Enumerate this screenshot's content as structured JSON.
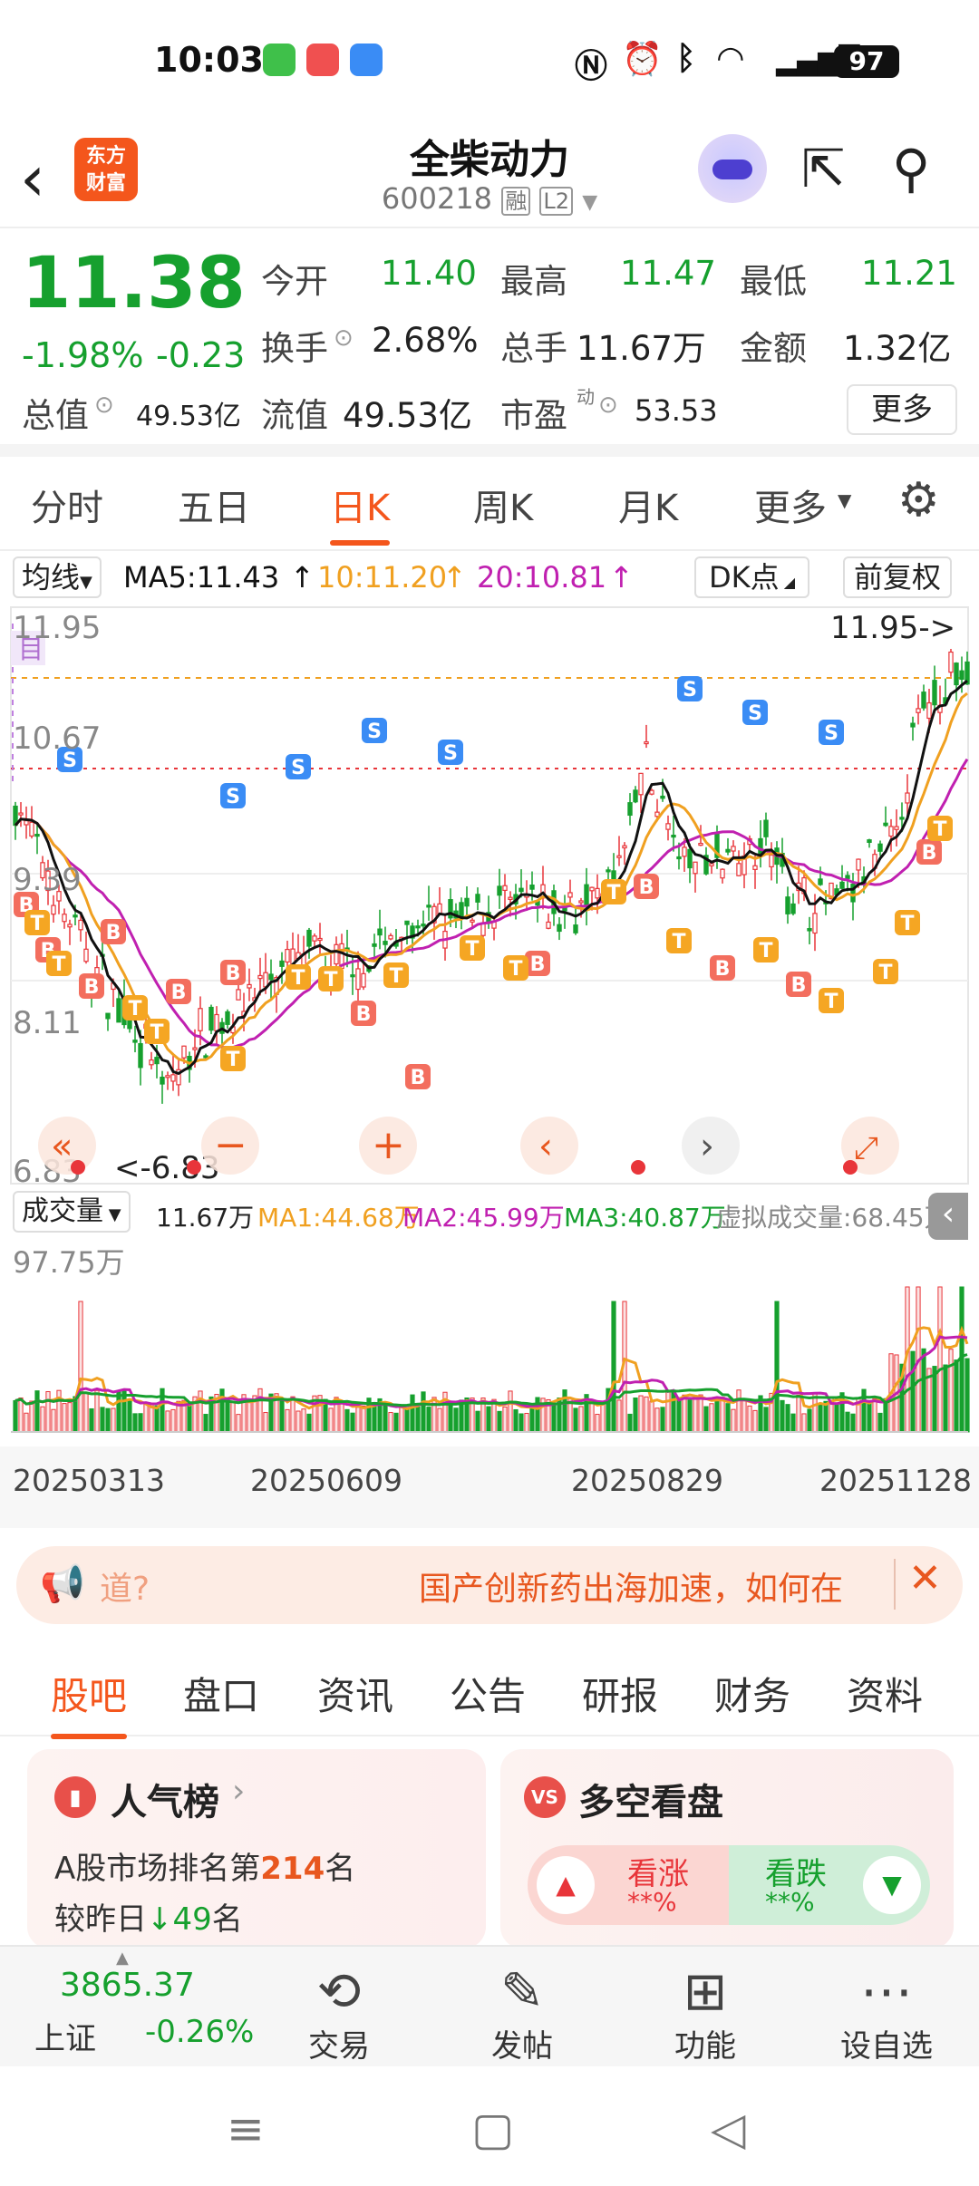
{
  "status_bar": {
    "time": "10:03",
    "battery": "97"
  },
  "header": {
    "logo_text_line1": "东方",
    "logo_text_line2": "财富",
    "stock_name": "全柴动力",
    "stock_code": "600218",
    "tag_rong": "融",
    "tag_level": "L2"
  },
  "quote": {
    "price": "11.38",
    "change_pct": "-1.98%",
    "change_abs": "-0.23",
    "open_label": "今开",
    "open_value": "11.40",
    "high_label": "最高",
    "high_value": "11.47",
    "low_label": "最低",
    "low_value": "11.21",
    "turnover_label": "换手",
    "turnover_value": "2.68%",
    "volume_label": "总手",
    "volume_value": "11.67万",
    "amount_label": "金额",
    "amount_value": "1.32亿",
    "mktcap_label": "总值",
    "mktcap_value": "49.53亿",
    "float_label": "流值",
    "float_value": "49.53亿",
    "pe_label": "市盈",
    "pe_sup": "动",
    "pe_value": "53.53",
    "more_label": "更多"
  },
  "period_tabs": [
    "分时",
    "五日",
    "日K",
    "周K",
    "月K",
    "更多"
  ],
  "ma_bar": {
    "indicator": "均线",
    "ma5": "MA5:11.43",
    "ma10": "10:11.20",
    "ma20": "20:10.81",
    "dk_label": "DK点",
    "adjust_label": "前复权"
  },
  "kline": {
    "max_label": "11.95",
    "max_arrow": "11.95->",
    "level2_label": "10.67",
    "level3_label": "9.39",
    "level4_label": "8.11",
    "min_label": "6.83",
    "min_arrow": "<-6.83",
    "mu_label": "目"
  },
  "volume_bar": {
    "label": "成交量",
    "vol": "11.67万",
    "ma1": "MA1:44.68万",
    "ma2": "MA2:45.99万",
    "ma3": "MA3:40.87万",
    "virtual": "虚拟成交量:68.45万",
    "max_label": "97.75万"
  },
  "dates": [
    "20250313",
    "20250609",
    "20250829",
    "20251128"
  ],
  "notice": {
    "left": "道?",
    "right": "国产创新药出海加速，如何在"
  },
  "info_tabs": [
    "股吧",
    "盘口",
    "资讯",
    "公告",
    "研报",
    "财务",
    "资料"
  ],
  "popularity": {
    "title": "人气榜",
    "rank_prefix": "A股市场排名第",
    "rank": "214",
    "rank_suffix": "名",
    "cmp_prefix": "较昨日",
    "cmp_value": "49",
    "cmp_suffix": "名"
  },
  "vs": {
    "title": "多空看盘",
    "bull_label": "看涨",
    "bull_value": "**%",
    "bear_label": "看跌",
    "bear_value": "**%"
  },
  "bottom_nav": {
    "index_value": "3865.37",
    "index_name": "上证",
    "index_change": "-0.26%",
    "items": [
      "交易",
      "发帖",
      "功能",
      "设自选"
    ]
  },
  "colors": {
    "up": "#e8353a",
    "down": "#16a02e",
    "accent": "#f4561c",
    "ma5": "#111111",
    "ma10": "#f0a020",
    "ma20": "#c020b0"
  }
}
